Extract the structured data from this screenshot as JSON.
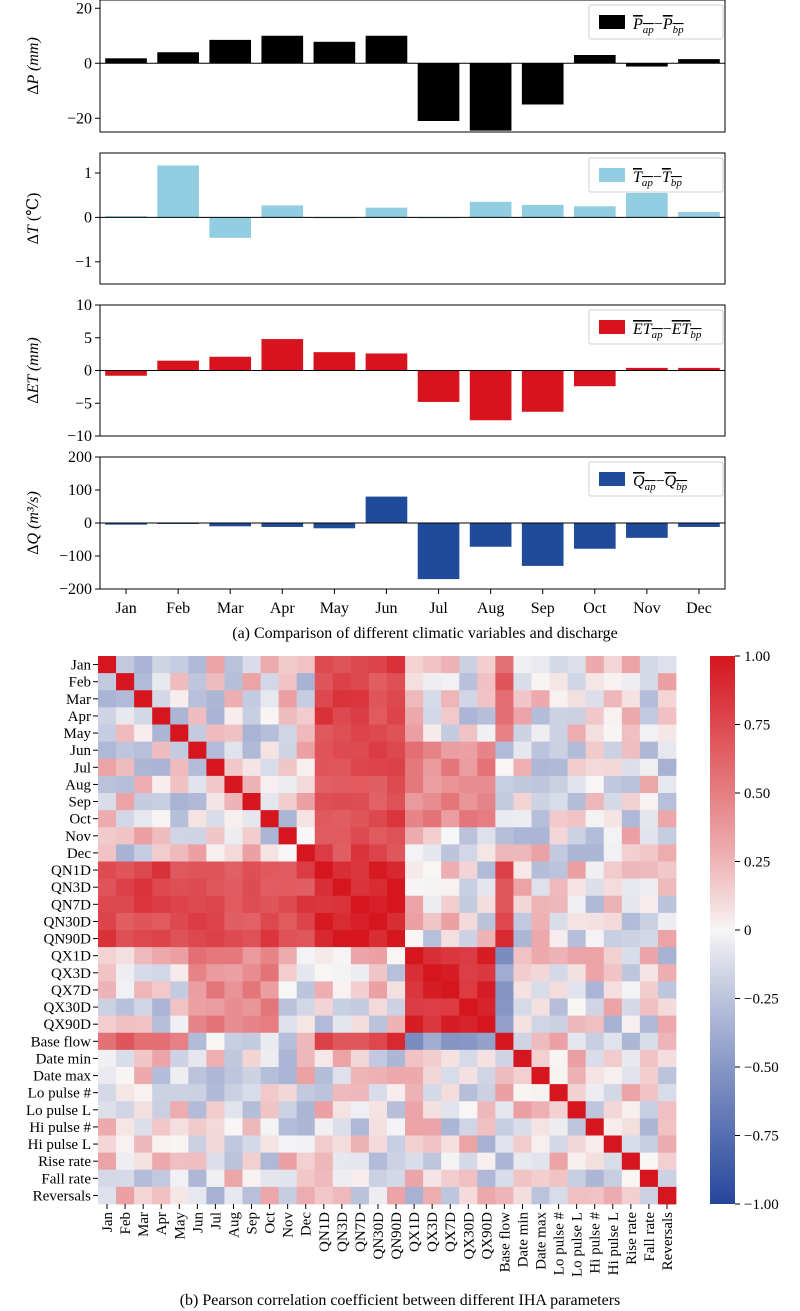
{
  "chart_data": [
    {
      "type": "bar",
      "ylabel": "ΔP (mm)",
      "legend": {
        "label": "P_ap − P_bp",
        "placement": "top-right"
      },
      "color": "#000000",
      "categories": [
        "Jan",
        "Feb",
        "Mar",
        "Apr",
        "May",
        "Jun",
        "Jul",
        "Aug",
        "Sep",
        "Oct",
        "Nov",
        "Dec"
      ],
      "values": [
        1.8,
        4.0,
        8.5,
        10.0,
        7.8,
        10.0,
        -21.0,
        -24.5,
        -15.0,
        3.0,
        -1.2,
        1.5
      ],
      "ylim": [
        -25,
        23
      ],
      "yticks": [
        -20,
        0,
        20
      ]
    },
    {
      "type": "bar",
      "ylabel": "ΔT (℃)",
      "legend": {
        "label": "T_ap − T_bp",
        "placement": "top-right"
      },
      "color": "#92cde1",
      "categories": [
        "Jan",
        "Feb",
        "Mar",
        "Apr",
        "May",
        "Jun",
        "Jul",
        "Aug",
        "Sep",
        "Oct",
        "Nov",
        "Dec"
      ],
      "values": [
        0.03,
        1.17,
        -0.46,
        0.27,
        -0.02,
        0.22,
        -0.02,
        0.35,
        0.28,
        0.25,
        0.55,
        0.12
      ],
      "ylim": [
        -1.5,
        1.45
      ],
      "yticks": [
        -1,
        0,
        1
      ]
    },
    {
      "type": "bar",
      "ylabel": "ΔET (mm)",
      "legend": {
        "label": "ET_ap − ET_bp",
        "placement": "top-right"
      },
      "color": "#d7141d",
      "categories": [
        "Jan",
        "Feb",
        "Mar",
        "Apr",
        "May",
        "Jun",
        "Jul",
        "Aug",
        "Sep",
        "Oct",
        "Nov",
        "Dec"
      ],
      "values": [
        -0.8,
        1.5,
        2.1,
        4.8,
        2.8,
        2.6,
        -4.8,
        -7.6,
        -6.3,
        -2.4,
        0.4,
        0.4
      ],
      "ylim": [
        -10,
        10
      ],
      "yticks": [
        -10,
        -5,
        0,
        5,
        10
      ]
    },
    {
      "type": "bar",
      "ylabel": "ΔQ (m³/s)",
      "legend": {
        "label": "Q_ap − Q_bp",
        "placement": "top-right"
      },
      "color": "#204b9b",
      "categories": [
        "Jan",
        "Feb",
        "Mar",
        "Apr",
        "May",
        "Jun",
        "Jul",
        "Aug",
        "Sep",
        "Oct",
        "Nov",
        "Dec"
      ],
      "values": [
        -5,
        -3,
        -10,
        -12,
        -16,
        80,
        -170,
        -72,
        -130,
        -78,
        -45,
        -12
      ],
      "ylim": [
        -200,
        200
      ],
      "yticks": [
        -200,
        -100,
        0,
        100,
        200
      ]
    },
    {
      "type": "heatmap",
      "labels": [
        "Jan",
        "Feb",
        "Mar",
        "Apr",
        "May",
        "Jun",
        "Jul",
        "Aug",
        "Sep",
        "Oct",
        "Nov",
        "Dec",
        "QN1D",
        "QN3D",
        "QN7D",
        "QN30D",
        "QN90D",
        "QX1D",
        "QX3D",
        "QX7D",
        "QX30D",
        "QX90D",
        "Base flow",
        "Date min",
        "Date max",
        "Lo pulse #",
        "Lo pulse L",
        "Hi pulse #",
        "Hi pulse L",
        "Rise rate",
        "Fall rate",
        "Reversals"
      ],
      "colorbar": {
        "ticks": [
          "1.00",
          "0.75",
          "0.50",
          "0.25",
          "0",
          "−0.25",
          "−0.50",
          "−0.75",
          "−1.00"
        ],
        "min": -1,
        "max": 1,
        "colormap": "coolwarm"
      },
      "blocks": [
        {
          "rows": [
            0,
            11
          ],
          "cols": [
            12,
            16
          ],
          "r": 0.75
        },
        {
          "rows": [
            0,
            4
          ],
          "cols": [
            22,
            22
          ],
          "r": 0.6
        },
        {
          "rows": [
            12,
            16
          ],
          "cols": [
            12,
            16
          ],
          "r": 0.95
        },
        {
          "rows": [
            17,
            21
          ],
          "cols": [
            17,
            21
          ],
          "r": 0.9
        },
        {
          "rows": [
            5,
            9
          ],
          "cols": [
            17,
            21
          ],
          "r": 0.45
        },
        {
          "rows": [
            12,
            16
          ],
          "cols": [
            22,
            22
          ],
          "r": 0.8
        },
        {
          "rows": [
            17,
            21
          ],
          "cols": [
            22,
            22
          ],
          "r": -0.45
        }
      ]
    }
  ],
  "captions": {
    "a": "(a) Comparison of different climatic variables and discharge",
    "b": "(b) Pearson correlation coefficient between different IHA parameters"
  }
}
